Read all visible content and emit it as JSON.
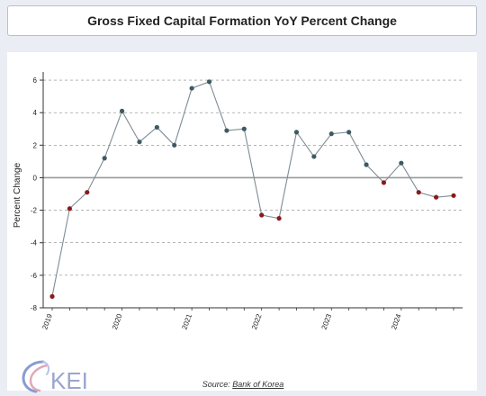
{
  "header": {
    "title": "Gross Fixed Capital Formation YoY Percent Change"
  },
  "footer": {
    "source_prefix": "Source: ",
    "source_name": "Bank of Korea"
  },
  "logo": {
    "text": "KEI"
  },
  "colors": {
    "line": "#7f8c94",
    "positive_point": "#3d5a62",
    "negative_point": "#8b1a1a",
    "zero_line": "#999999",
    "grid": "#888888"
  },
  "chart_data": {
    "type": "line",
    "title": "Gross Fixed Capital Formation YoY Percent Change",
    "xlabel": "",
    "ylabel": "Percent Change",
    "ylim": [
      -8,
      6.5
    ],
    "yticks": [
      -8,
      -6,
      -4,
      -2,
      0,
      2,
      4,
      6
    ],
    "grid": "horizontal dashed",
    "x": [
      "2019 Q1",
      "2019 Q2",
      "2019 Q3",
      "2019 Q4",
      "2020 Q1",
      "2020 Q2",
      "2020 Q3",
      "2020 Q4",
      "2021 Q1",
      "2021 Q2",
      "2021 Q3",
      "2021 Q4",
      "2022 Q1",
      "2022 Q2",
      "2022 Q3",
      "2022 Q4",
      "2023 Q1",
      "2023 Q2",
      "2023 Q3",
      "2023 Q4",
      "2024 Q1",
      "2024 Q2",
      "2024 Q3",
      "2024 Q4"
    ],
    "x_tick_labels": [
      {
        "label": "2019",
        "index": 0
      },
      {
        "label": "2020",
        "index": 4
      },
      {
        "label": "2021",
        "index": 8
      },
      {
        "label": "2022",
        "index": 12
      },
      {
        "label": "2023",
        "index": 16
      },
      {
        "label": "2024",
        "index": 20
      }
    ],
    "values": [
      -7.3,
      -1.9,
      -0.9,
      1.2,
      4.1,
      2.2,
      3.1,
      2.0,
      5.5,
      5.9,
      2.9,
      3.0,
      -2.3,
      -2.5,
      2.8,
      1.3,
      2.7,
      2.8,
      0.8,
      -0.3,
      0.9,
      -0.9,
      -1.2,
      -1.1
    ]
  }
}
